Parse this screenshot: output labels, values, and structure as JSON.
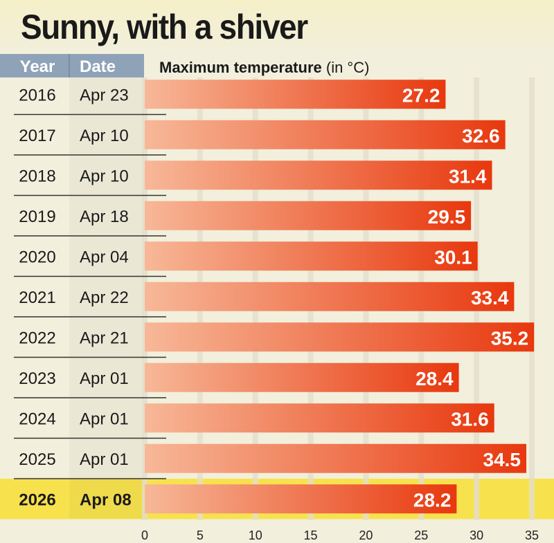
{
  "title": "Sunny, with a shiver",
  "headers": {
    "year": "Year",
    "date": "Date",
    "measure": "Maximum temperature",
    "unit": "(in °C)"
  },
  "colors": {
    "header": "#8fa3b8",
    "highlight": "#f7e24e",
    "bar_start": "#f7b898",
    "bar_end": "#e8380e",
    "background": "#f2efdc"
  },
  "chart_data": {
    "type": "bar",
    "orientation": "horizontal",
    "title": "Sunny, with a shiver",
    "xlabel": "Maximum temperature (in °C)",
    "xlim": [
      0,
      35
    ],
    "xticks": [
      0,
      5,
      10,
      15,
      20,
      25,
      30,
      35
    ],
    "grid": true,
    "highlight_category": "2026",
    "rows": [
      {
        "year": "2016",
        "date": "Apr 23",
        "value": 27.2
      },
      {
        "year": "2017",
        "date": "Apr 10",
        "value": 32.6
      },
      {
        "year": "2018",
        "date": "Apr 10",
        "value": 31.4
      },
      {
        "year": "2019",
        "date": "Apr 18",
        "value": 29.5
      },
      {
        "year": "2020",
        "date": "Apr 04",
        "value": 30.1
      },
      {
        "year": "2021",
        "date": "Apr 22",
        "value": 33.4
      },
      {
        "year": "2022",
        "date": "Apr 21",
        "value": 35.2
      },
      {
        "year": "2023",
        "date": "Apr 01",
        "value": 28.4
      },
      {
        "year": "2024",
        "date": "Apr 01",
        "value": 31.6
      },
      {
        "year": "2025",
        "date": "Apr 01",
        "value": 34.5
      },
      {
        "year": "2026",
        "date": "Apr 08",
        "value": 28.2
      }
    ]
  }
}
